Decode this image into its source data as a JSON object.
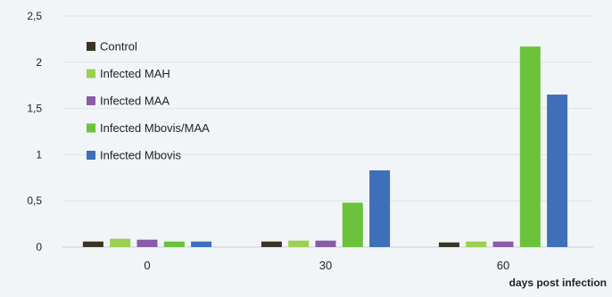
{
  "chart_data": {
    "type": "bar",
    "title": "",
    "xlabel": "days post infection",
    "ylabel": "",
    "categories": [
      "0",
      "30",
      "60"
    ],
    "ylim": [
      0,
      2.5
    ],
    "yticks": [
      0,
      0.5,
      1,
      1.5,
      2,
      2.5
    ],
    "ytick_labels": [
      "0",
      "0,5",
      "1",
      "1,5",
      "2",
      "2,5"
    ],
    "grid": true,
    "legend_position": "top-left",
    "series": [
      {
        "name": "Control",
        "color": "#3a3426",
        "values": [
          0.06,
          0.06,
          0.05
        ]
      },
      {
        "name": "Infected MAH",
        "color": "#9ccf52",
        "values": [
          0.09,
          0.07,
          0.06
        ]
      },
      {
        "name": "Infected MAA",
        "color": "#8a5ca8",
        "values": [
          0.08,
          0.07,
          0.06
        ]
      },
      {
        "name": "Infected Mbovis/MAA",
        "color": "#6cc23a",
        "values": [
          0.06,
          0.48,
          2.17
        ]
      },
      {
        "name": "Infected Mbovis",
        "color": "#3f6fb8",
        "values": [
          0.06,
          0.83,
          1.65
        ]
      }
    ]
  }
}
